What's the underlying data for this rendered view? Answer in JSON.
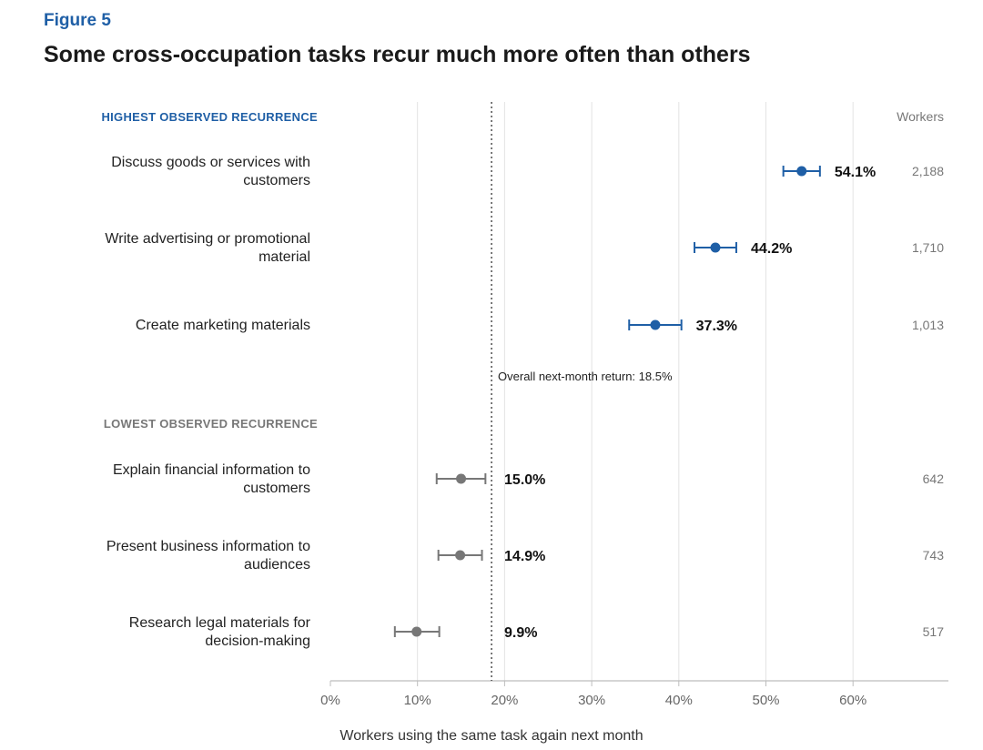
{
  "figure_label": "Figure 5",
  "title": "Some cross-occupation tasks recur much more often than others",
  "chart_data": {
    "type": "scatter",
    "subtype": "dot-plot-with-error-bars",
    "xlabel": "Workers using the same task again next month",
    "xlim": [
      0,
      70
    ],
    "xticks": [
      0,
      10,
      20,
      30,
      40,
      50,
      60
    ],
    "xtick_labels": [
      "0%",
      "10%",
      "20%",
      "30%",
      "40%",
      "50%",
      "60%"
    ],
    "grid": true,
    "reference_line": {
      "value": 18.5,
      "label": "Overall next-month return: 18.5%"
    },
    "workers_header": "Workers",
    "groups": [
      {
        "name": "HIGHEST OBSERVED RECURRENCE",
        "color": "#1f5fa6",
        "items": [
          {
            "label_lines": [
              "Discuss goods or services with",
              "customers"
            ],
            "value": 54.1,
            "value_label": "54.1%",
            "ci": [
              52.0,
              56.2
            ],
            "workers": "2,188"
          },
          {
            "label_lines": [
              "Write advertising or promotional",
              "material"
            ],
            "value": 44.2,
            "value_label": "44.2%",
            "ci": [
              41.8,
              46.6
            ],
            "workers": "1,710"
          },
          {
            "label_lines": [
              "Create marketing materials"
            ],
            "value": 37.3,
            "value_label": "37.3%",
            "ci": [
              34.3,
              40.3
            ],
            "workers": "1,013"
          }
        ]
      },
      {
        "name": "LOWEST OBSERVED RECURRENCE",
        "color": "#777777",
        "items": [
          {
            "label_lines": [
              "Explain financial information to",
              "customers"
            ],
            "value": 15.0,
            "value_label": "15.0%",
            "ci": [
              12.2,
              17.8
            ],
            "workers": "642"
          },
          {
            "label_lines": [
              "Present business information to",
              "audiences"
            ],
            "value": 14.9,
            "value_label": "14.9%",
            "ci": [
              12.4,
              17.4
            ],
            "workers": "743"
          },
          {
            "label_lines": [
              "Research legal materials for",
              "decision-making"
            ],
            "value": 9.9,
            "value_label": "9.9%",
            "ci": [
              7.4,
              12.5
            ],
            "workers": "517"
          }
        ]
      }
    ]
  }
}
